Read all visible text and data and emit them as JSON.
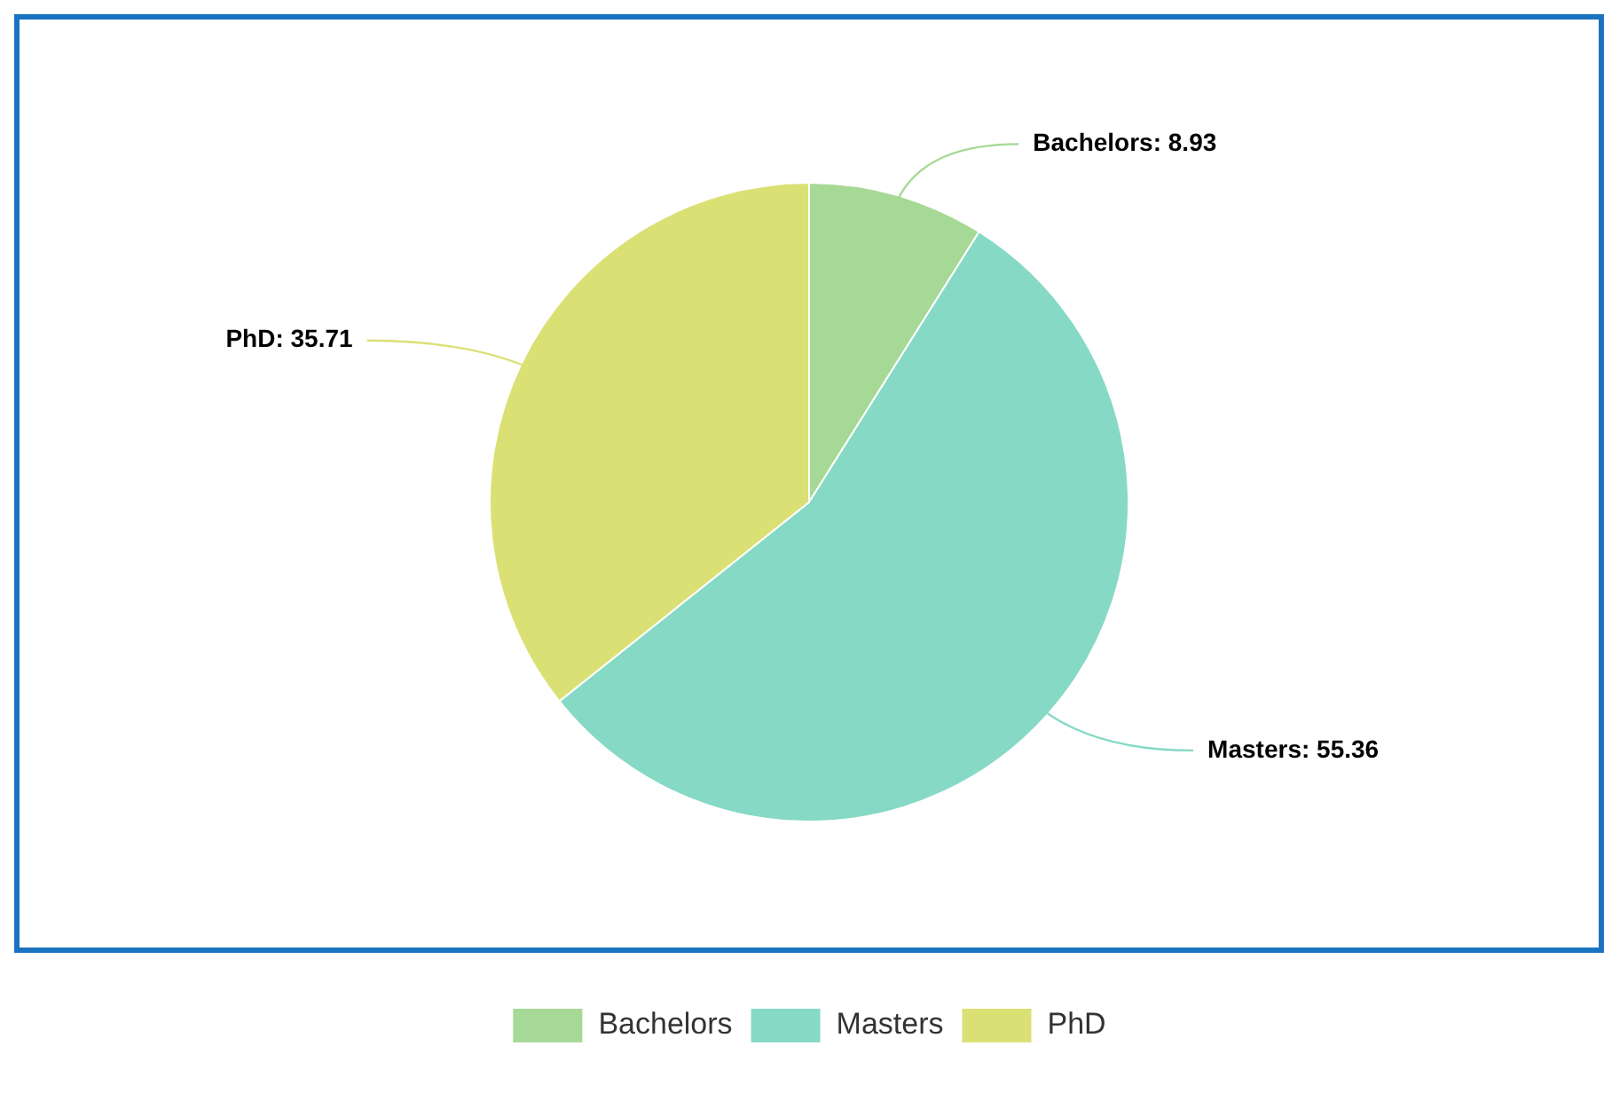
{
  "chart_data": {
    "type": "pie",
    "categories": [
      "Bachelors",
      "Masters",
      "PhD"
    ],
    "values": [
      8.93,
      55.36,
      35.71
    ],
    "value_labels": [
      "Bachelors: 8.93",
      "Masters: 55.36",
      "PhD: 35.71"
    ],
    "colors": [
      "#a6d995",
      "#86d9c5",
      "#dbe075"
    ],
    "legend": "bottom"
  }
}
